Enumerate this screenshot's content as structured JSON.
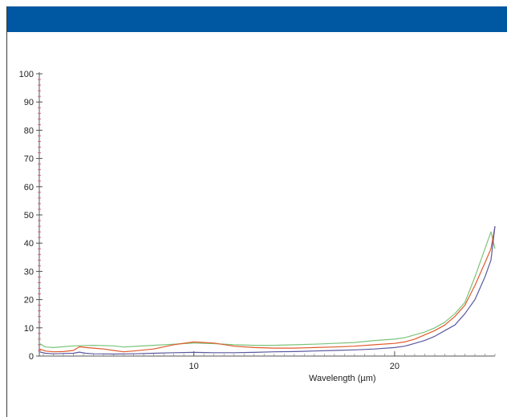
{
  "header": {
    "color": "#0058a3"
  },
  "chart_data": {
    "type": "line",
    "title": "",
    "xlabel": "Wavelength (µm)",
    "ylabel": "",
    "xlim": [
      2.3,
      25
    ],
    "ylim": [
      0,
      100
    ],
    "x_ticks": [
      10,
      20
    ],
    "y_ticks": [
      0,
      10,
      20,
      30,
      40,
      50,
      60,
      70,
      80,
      90,
      100
    ],
    "grid": false,
    "legend": "none",
    "series": [
      {
        "color": "#7cc47c",
        "points": [
          [
            2.3,
            4.5
          ],
          [
            2.6,
            3.2
          ],
          [
            3.0,
            3.0
          ],
          [
            3.5,
            3.3
          ],
          [
            4,
            3.6
          ],
          [
            5,
            3.8
          ],
          [
            6,
            3.6
          ],
          [
            6.5,
            3.2
          ],
          [
            7,
            3.4
          ],
          [
            8,
            3.8
          ],
          [
            9,
            4.2
          ],
          [
            10,
            4.6
          ],
          [
            11,
            4.4
          ],
          [
            12,
            4.0
          ],
          [
            13,
            3.8
          ],
          [
            14,
            3.8
          ],
          [
            15,
            4.0
          ],
          [
            16,
            4.2
          ],
          [
            17,
            4.5
          ],
          [
            18,
            4.8
          ],
          [
            19,
            5.5
          ],
          [
            20,
            6.0
          ],
          [
            20.5,
            6.5
          ],
          [
            21,
            7.5
          ],
          [
            21.5,
            8.5
          ],
          [
            22,
            10
          ],
          [
            22.5,
            12
          ],
          [
            23,
            15
          ],
          [
            23.5,
            19
          ],
          [
            24,
            28
          ],
          [
            24.5,
            38
          ],
          [
            24.8,
            44
          ],
          [
            25,
            38
          ]
        ]
      },
      {
        "color": "#e05a2a",
        "points": [
          [
            2.3,
            2.5
          ],
          [
            2.6,
            1.8
          ],
          [
            3.0,
            1.5
          ],
          [
            3.5,
            1.6
          ],
          [
            4,
            2.0
          ],
          [
            4.3,
            3.3
          ],
          [
            4.6,
            3.0
          ],
          [
            5,
            2.8
          ],
          [
            5.5,
            2.5
          ],
          [
            6,
            2.0
          ],
          [
            6.5,
            1.5
          ],
          [
            7,
            1.8
          ],
          [
            8,
            2.5
          ],
          [
            9,
            4.0
          ],
          [
            10,
            5.0
          ],
          [
            11,
            4.6
          ],
          [
            12,
            3.5
          ],
          [
            13,
            3.0
          ],
          [
            14,
            2.8
          ],
          [
            15,
            2.8
          ],
          [
            16,
            3.0
          ],
          [
            17,
            3.2
          ],
          [
            18,
            3.5
          ],
          [
            19,
            4.0
          ],
          [
            20,
            4.5
          ],
          [
            20.5,
            5.0
          ],
          [
            21,
            6.0
          ],
          [
            21.5,
            7.5
          ],
          [
            22,
            9.0
          ],
          [
            22.5,
            11
          ],
          [
            23,
            14
          ],
          [
            23.5,
            18
          ],
          [
            24,
            25
          ],
          [
            24.5,
            33
          ],
          [
            24.8,
            38
          ],
          [
            25,
            46
          ]
        ]
      },
      {
        "color": "#5a5aa0",
        "points": [
          [
            2.3,
            1.5
          ],
          [
            2.6,
            1.0
          ],
          [
            3.0,
            0.8
          ],
          [
            3.5,
            0.9
          ],
          [
            4,
            1.0
          ],
          [
            4.3,
            1.4
          ],
          [
            4.6,
            1.0
          ],
          [
            5,
            0.8
          ],
          [
            6,
            0.7
          ],
          [
            7,
            0.8
          ],
          [
            8,
            1.0
          ],
          [
            9,
            1.2
          ],
          [
            10,
            1.3
          ],
          [
            11,
            1.2
          ],
          [
            12,
            1.2
          ],
          [
            13,
            1.3
          ],
          [
            14,
            1.5
          ],
          [
            15,
            1.6
          ],
          [
            16,
            1.8
          ],
          [
            17,
            2.0
          ],
          [
            18,
            2.2
          ],
          [
            19,
            2.5
          ],
          [
            20,
            3.0
          ],
          [
            20.5,
            3.5
          ],
          [
            21,
            4.5
          ],
          [
            21.5,
            5.5
          ],
          [
            22,
            7.0
          ],
          [
            22.5,
            9.0
          ],
          [
            23,
            11
          ],
          [
            23.5,
            15
          ],
          [
            24,
            20
          ],
          [
            24.5,
            28
          ],
          [
            24.8,
            34
          ],
          [
            25,
            46
          ]
        ]
      }
    ]
  }
}
